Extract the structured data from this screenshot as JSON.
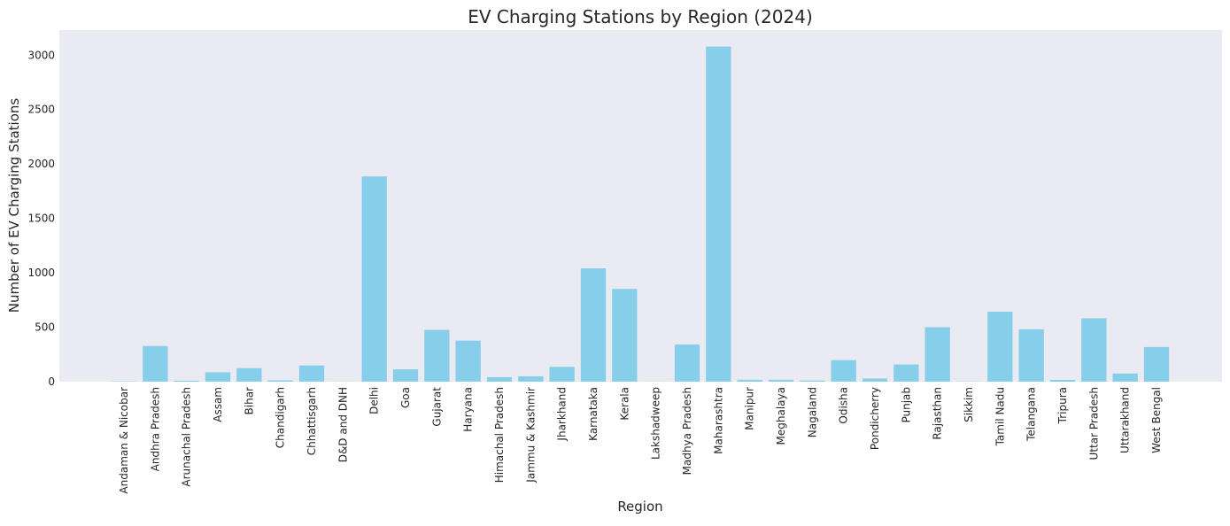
{
  "chart_data": {
    "type": "bar",
    "title": "EV Charging Stations by Region (2024)",
    "xlabel": "Region",
    "ylabel": "Number of EV Charging Stations",
    "ylim": [
      0,
      3230
    ],
    "yticks": [
      0,
      500,
      1000,
      1500,
      2000,
      2500,
      3000
    ],
    "grid": false,
    "legend": "none",
    "colors": {
      "bar": "#87ceeb",
      "plot_bg": "#eaeaf2",
      "text": "#262626"
    },
    "categories": [
      "Andaman & Nicobar",
      "Andhra Pradesh",
      "Arunachal Pradesh",
      "Assam",
      "Bihar",
      "Chandigarh",
      "Chhattisgarh",
      "D&D and DNH",
      "Delhi",
      "Goa",
      "Gujarat",
      "Haryana",
      "Himachal Pradesh",
      "Jammu & Kashmir",
      "Jharkhand",
      "Karnataka",
      "Kerala",
      "Lakshadweep",
      "Madhya Pradesh",
      "Maharashtra",
      "Manipur",
      "Meghalaya",
      "Nagaland",
      "Odisha",
      "Pondicherry",
      "Punjab",
      "Rajasthan",
      "Sikkim",
      "Tamil Nadu",
      "Telangana",
      "Tripura",
      "Uttar Pradesh",
      "Uttarakhand",
      "West Bengal"
    ],
    "values": [
      3,
      327,
      9,
      86,
      124,
      12,
      149,
      1,
      1886,
      113,
      476,
      377,
      41,
      49,
      136,
      1041,
      852,
      1,
      341,
      3079,
      17,
      17,
      10,
      198,
      29,
      158,
      500,
      2,
      643,
      481,
      16,
      582,
      75,
      318
    ]
  }
}
